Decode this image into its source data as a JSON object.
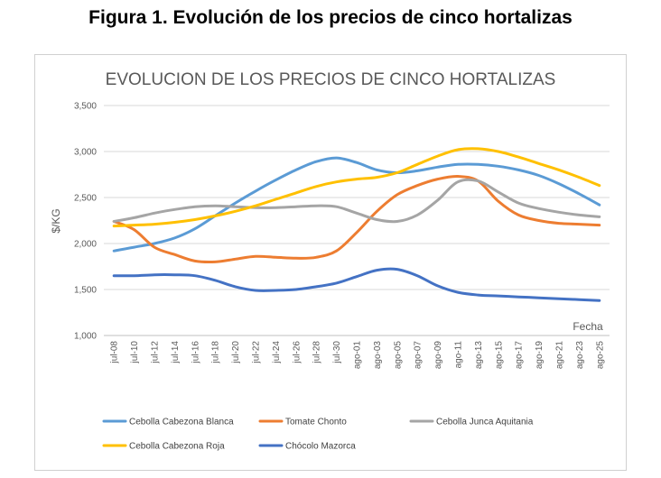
{
  "figure": {
    "title": "Figura 1. Evolución de los precios de cinco hortalizas"
  },
  "chart_data": {
    "type": "line",
    "title": "EVOLUCION DE LOS PRECIOS DE CINCO HORTALIZAS",
    "xlabel": "Fecha",
    "ylabel": "$/KG",
    "ylim": [
      1000,
      3500
    ],
    "yticks": [
      1000,
      1500,
      2000,
      2500,
      3000,
      3500
    ],
    "ytick_labels": [
      "1,000",
      "1,500",
      "2,000",
      "2,500",
      "3,000",
      "3,500"
    ],
    "grid": true,
    "legend_position": "bottom",
    "x": [
      "jul-08",
      "jul-10",
      "jul-12",
      "jul-14",
      "jul-16",
      "jul-18",
      "jul-20",
      "jul-22",
      "jul-24",
      "jul-26",
      "jul-28",
      "jul-30",
      "ago-01",
      "ago-03",
      "ago-05",
      "ago-07",
      "ago-09",
      "ago-11",
      "ago-13",
      "ago-15",
      "ago-17",
      "ago-19",
      "ago-21",
      "ago-23",
      "ago-25"
    ],
    "series": [
      {
        "name": "Cebolla Cabezona Blanca",
        "color": "#5b9bd5",
        "values": [
          1920,
          1960,
          2000,
          2060,
          2160,
          2300,
          2440,
          2570,
          2690,
          2800,
          2890,
          2930,
          2880,
          2800,
          2770,
          2790,
          2830,
          2860,
          2860,
          2840,
          2800,
          2740,
          2650,
          2540,
          2420
        ]
      },
      {
        "name": "Tomate Chonto",
        "color": "#ed7d31",
        "values": [
          2240,
          2150,
          1960,
          1880,
          1810,
          1800,
          1830,
          1860,
          1850,
          1840,
          1850,
          1920,
          2120,
          2350,
          2530,
          2630,
          2700,
          2730,
          2680,
          2460,
          2310,
          2250,
          2220,
          2210,
          2200
        ]
      },
      {
        "name": "Cebolla Junca Aquitania",
        "color": "#a5a5a5",
        "values": [
          2240,
          2280,
          2330,
          2370,
          2400,
          2410,
          2400,
          2390,
          2390,
          2400,
          2410,
          2400,
          2330,
          2260,
          2240,
          2310,
          2470,
          2670,
          2680,
          2560,
          2440,
          2380,
          2340,
          2310,
          2290
        ]
      },
      {
        "name": "Cebolla Cabezona Roja",
        "color": "#ffc000",
        "values": [
          2190,
          2200,
          2210,
          2230,
          2260,
          2300,
          2350,
          2410,
          2480,
          2550,
          2620,
          2670,
          2700,
          2720,
          2770,
          2860,
          2950,
          3020,
          3030,
          3000,
          2940,
          2870,
          2800,
          2720,
          2630
        ]
      },
      {
        "name": "Chócolo Mazorca",
        "color": "#4472c4",
        "values": [
          1650,
          1650,
          1660,
          1660,
          1650,
          1600,
          1530,
          1490,
          1490,
          1500,
          1530,
          1570,
          1640,
          1710,
          1720,
          1650,
          1540,
          1470,
          1440,
          1430,
          1420,
          1410,
          1400,
          1390,
          1380
        ]
      }
    ]
  }
}
